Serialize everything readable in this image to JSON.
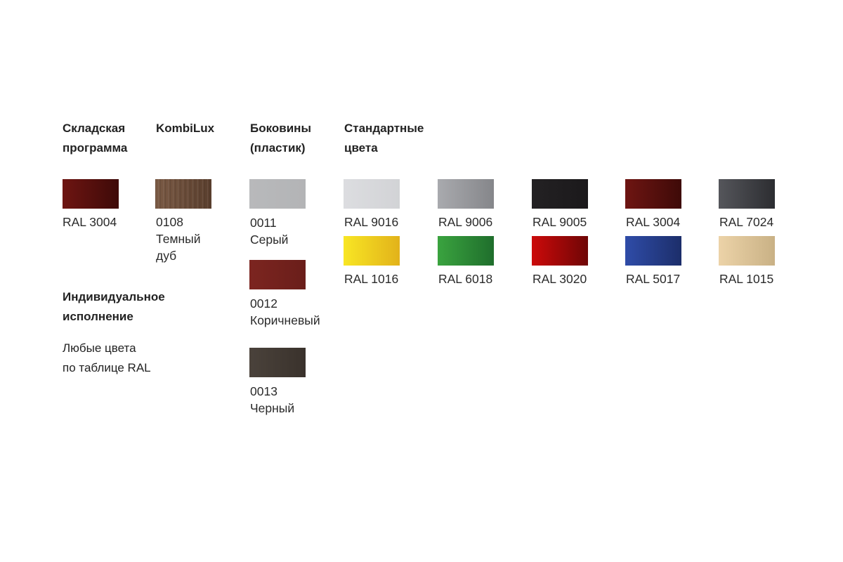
{
  "headers": {
    "stock": "Складская\nпрограмма",
    "kombilux": "KombiLux",
    "sides": "Боковины\n(пластик)",
    "standard": "Стандартные\nцвета",
    "individual": "Индивидуальное\nисполнение"
  },
  "individual_text": "Любые цвета\nпо таблице RAL",
  "stock": {
    "label": "RAL 3004",
    "color": [
      "#6e1512",
      "#3e0a08"
    ]
  },
  "kombilux": {
    "label": "0108\nТемный\nдуб",
    "color": [
      "#7a5a45",
      "#5a3f2e"
    ]
  },
  "sides": [
    {
      "label": "0011\nСерый",
      "color": [
        "#b8b9bb",
        "#b3b4b6"
      ]
    },
    {
      "label": "0012\nКоричневый",
      "color": [
        "#7c2520",
        "#6a1e1a"
      ]
    },
    {
      "label": "0013\nЧерный",
      "color": [
        "#4a423b",
        "#3a322c"
      ]
    }
  ],
  "standard": [
    {
      "label": "RAL 9016",
      "color": [
        "#dcdde0",
        "#d2d3d6"
      ]
    },
    {
      "label": "RAL 9006",
      "color": [
        "#a9aaae",
        "#85868a"
      ]
    },
    {
      "label": "RAL 9005",
      "color": [
        "#232123",
        "#1b191b"
      ]
    },
    {
      "label": "RAL 3004",
      "color": [
        "#6e1512",
        "#3e0a08"
      ]
    },
    {
      "label": "RAL 7024",
      "color": [
        "#55565b",
        "#2c2d31"
      ]
    },
    {
      "label": "RAL 1016",
      "color": [
        "#f8e624",
        "#e2b21a"
      ]
    },
    {
      "label": "RAL 6018",
      "color": [
        "#3aa33f",
        "#1f6e2c"
      ]
    },
    {
      "label": "RAL 3020",
      "color": [
        "#cc0a0a",
        "#6e0606"
      ]
    },
    {
      "label": "RAL 5017",
      "color": [
        "#2f4ca8",
        "#1c2e6a"
      ]
    },
    {
      "label": "RAL 1015",
      "color": [
        "#ecd3a8",
        "#c9b185"
      ]
    }
  ]
}
